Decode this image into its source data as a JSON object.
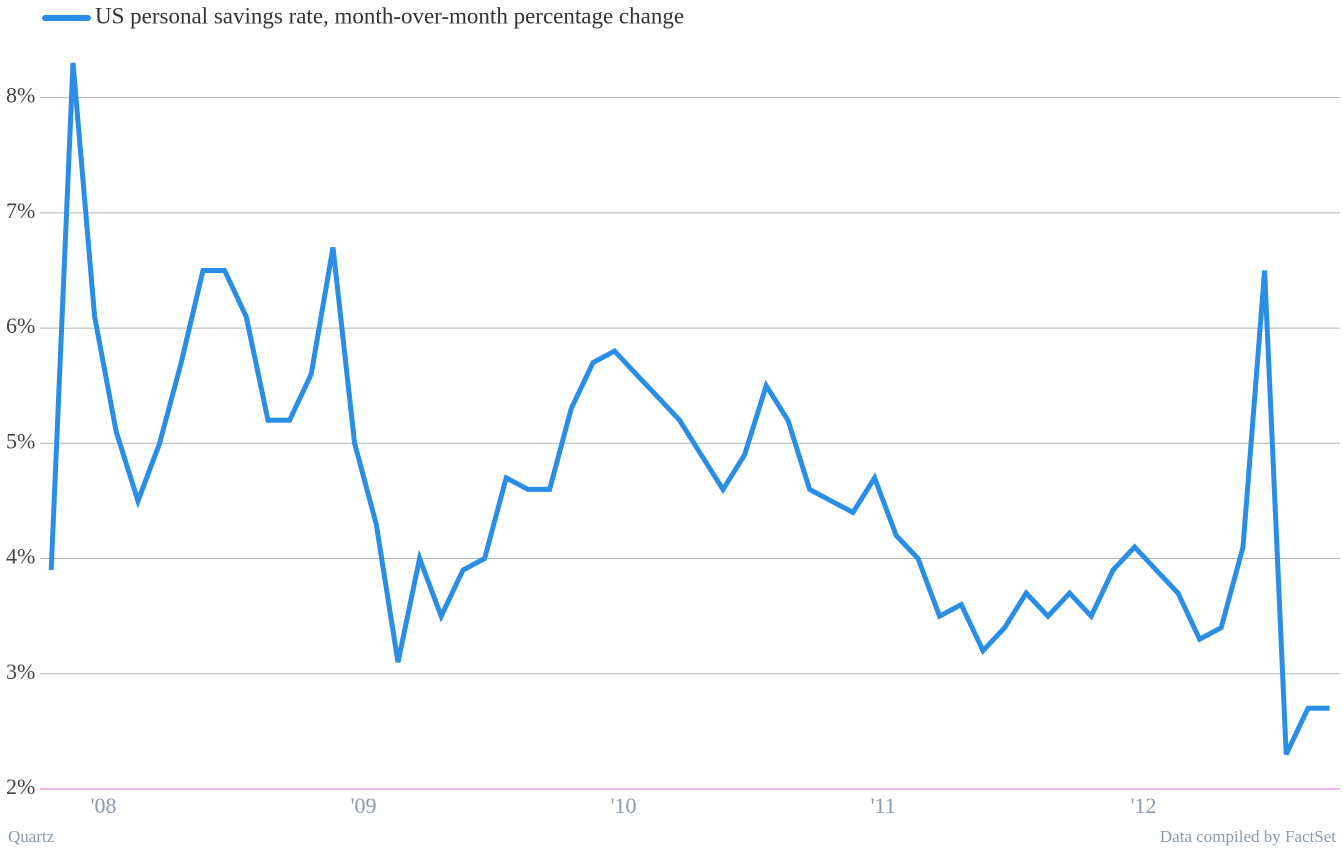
{
  "chart_data": {
    "type": "line",
    "x": [
      2007.833,
      2007.917,
      2008,
      2008.083,
      2008.167,
      2008.25,
      2008.333,
      2008.417,
      2008.5,
      2008.583,
      2008.667,
      2008.75,
      2008.833,
      2008.917,
      2009,
      2009.083,
      2009.167,
      2009.25,
      2009.333,
      2009.417,
      2009.5,
      2009.583,
      2009.667,
      2009.75,
      2009.833,
      2009.917,
      2010,
      2010.083,
      2010.167,
      2010.25,
      2010.333,
      2010.417,
      2010.5,
      2010.583,
      2010.667,
      2010.75,
      2010.833,
      2010.917,
      2011,
      2011.083,
      2011.167,
      2011.25,
      2011.333,
      2011.417,
      2011.5,
      2011.583,
      2011.667,
      2011.75,
      2011.833,
      2011.917,
      2012,
      2012.083,
      2012.167,
      2012.25,
      2012.333,
      2012.417,
      2012.5,
      2012.583,
      2012.667,
      2012.75
    ],
    "series": [
      {
        "name": "US personal savings rate, month-over-month percentage change",
        "color": "#2a8ee6",
        "values": [
          3.9,
          8.3,
          6.1,
          5.1,
          4.5,
          5.0,
          5.7,
          6.5,
          6.5,
          6.1,
          5.2,
          5.2,
          5.6,
          6.7,
          5.0,
          4.3,
          3.1,
          4.0,
          3.5,
          3.9,
          4.0,
          4.7,
          4.6,
          4.6,
          5.3,
          5.7,
          5.8,
          5.6,
          5.4,
          5.2,
          4.9,
          4.6,
          4.9,
          5.5,
          5.2,
          4.6,
          4.5,
          4.4,
          4.7,
          4.2,
          4.0,
          3.5,
          3.6,
          3.2,
          3.4,
          3.7,
          3.5,
          3.7,
          3.5,
          3.9,
          4.1,
          3.9,
          3.7,
          3.3,
          3.4,
          4.1,
          6.5,
          2.3,
          2.7,
          2.7
        ]
      }
    ],
    "xlim": [
      2007.79,
      2012.79
    ],
    "xticks": [
      {
        "value": 2008,
        "label": "'08"
      },
      {
        "value": 2009,
        "label": "'09"
      },
      {
        "value": 2010,
        "label": "'10"
      },
      {
        "value": 2011,
        "label": "'11"
      },
      {
        "value": 2012,
        "label": "'12"
      }
    ],
    "ylim": [
      2,
      8.5
    ],
    "yticks": [
      {
        "value": 2,
        "label": "2%"
      },
      {
        "value": 3,
        "label": "3%"
      },
      {
        "value": 4,
        "label": "4%"
      },
      {
        "value": 5,
        "label": "5%"
      },
      {
        "value": 6,
        "label": "6%"
      },
      {
        "value": 7,
        "label": "7%"
      },
      {
        "value": 8,
        "label": "8%"
      }
    ],
    "grid": true,
    "legend": "top-left",
    "credit": "Quartz",
    "source": "Data compiled by FactSet"
  }
}
